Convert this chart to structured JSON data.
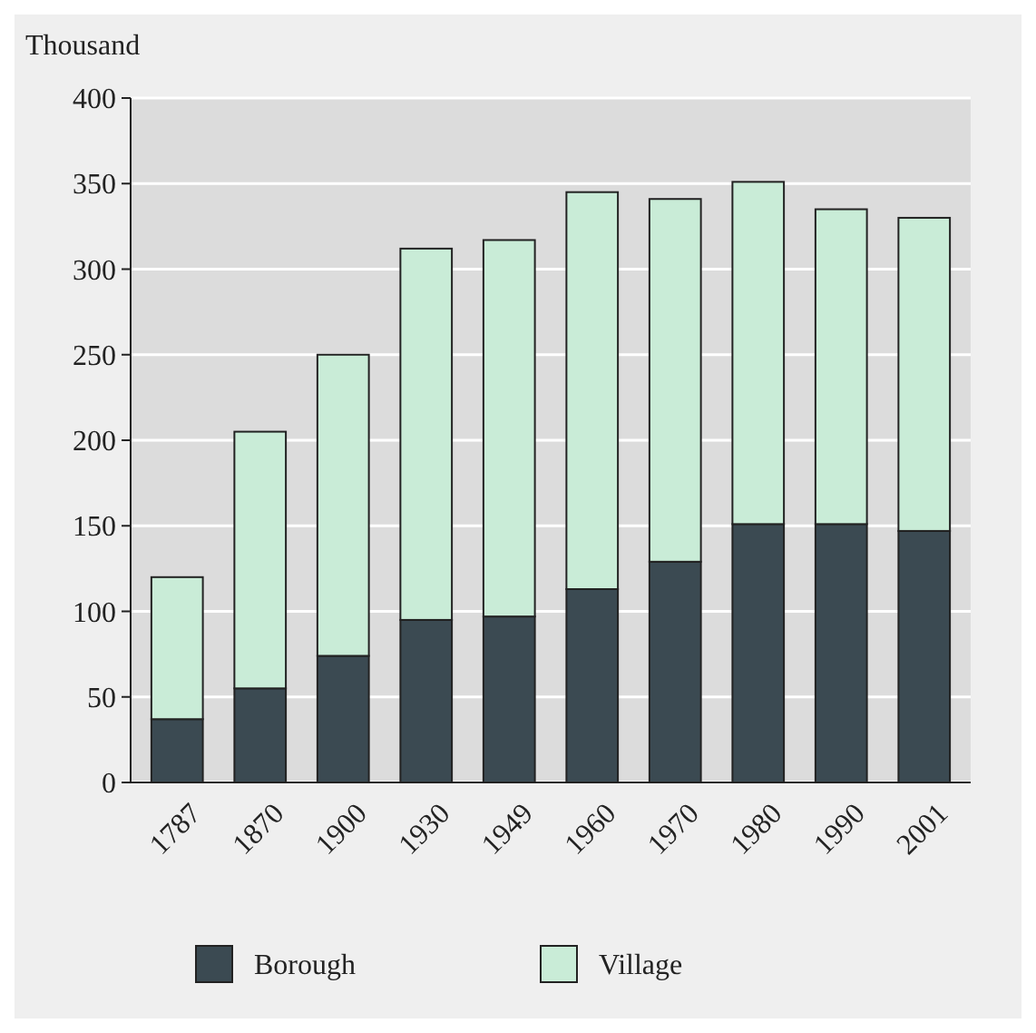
{
  "chart_data": {
    "type": "bar",
    "ylabel": "Thousand",
    "stacked": true,
    "categories": [
      "1787",
      "1870",
      "1900",
      "1930",
      "1949",
      "1960",
      "1970",
      "1980",
      "1990",
      "2001"
    ],
    "series": [
      {
        "name": "Borough",
        "color": "#3b4a52",
        "values": [
          37,
          55,
          74,
          95,
          97,
          113,
          129,
          151,
          151,
          147
        ]
      },
      {
        "name": "Village",
        "color": "#c9ecd7",
        "values": [
          83,
          150,
          176,
          217,
          220,
          232,
          212,
          200,
          184,
          183
        ]
      }
    ],
    "ylim": [
      0,
      400
    ],
    "yticks": [
      0,
      50,
      100,
      150,
      200,
      250,
      300,
      350,
      400
    ],
    "grid": "y",
    "legend": "bottom"
  }
}
